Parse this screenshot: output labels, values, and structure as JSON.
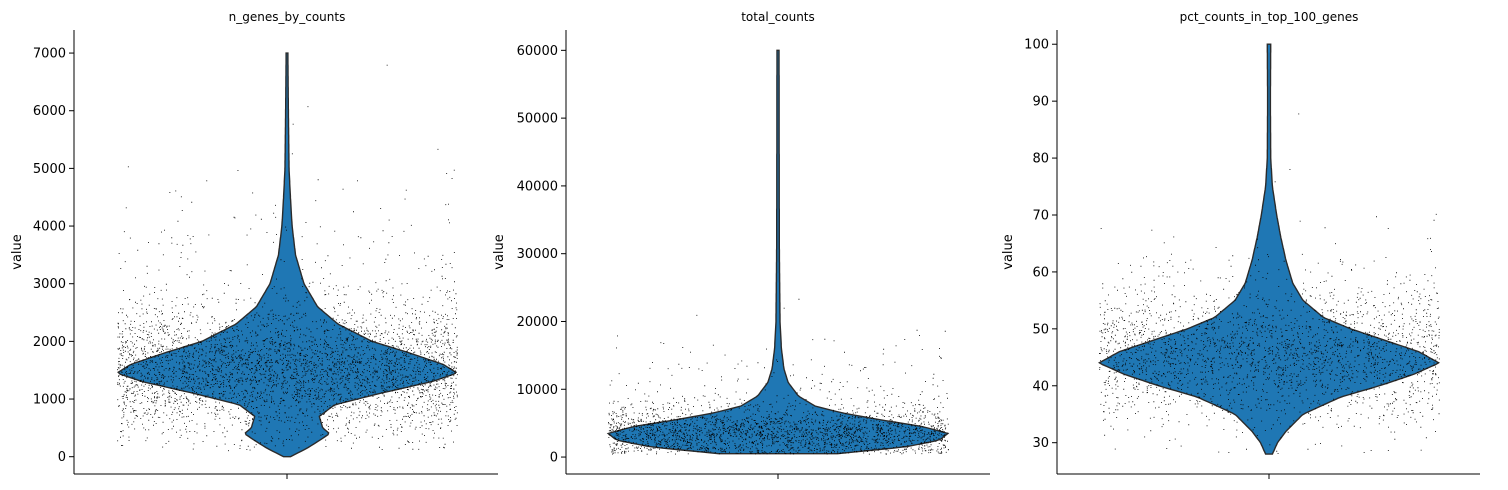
{
  "chart_data": [
    {
      "type": "violin",
      "title": "n_genes_by_counts",
      "ylabel": "value",
      "ylim": [
        -300,
        7400
      ],
      "yticks": [
        0,
        1000,
        2000,
        3000,
        4000,
        5000,
        6000,
        7000
      ],
      "yticklabels": [
        "0",
        "1000",
        "2000",
        "3000",
        "4000",
        "5000",
        "6000",
        "7000"
      ],
      "violin_color": "#1f77b4",
      "violin_range": [
        0,
        7000
      ],
      "violin_profile": [
        [
          0,
          0.02
        ],
        [
          150,
          0.12
        ],
        [
          300,
          0.2
        ],
        [
          400,
          0.25
        ],
        [
          500,
          0.21
        ],
        [
          700,
          0.19
        ],
        [
          900,
          0.28
        ],
        [
          1100,
          0.55
        ],
        [
          1300,
          0.85
        ],
        [
          1450,
          1.0
        ],
        [
          1600,
          0.92
        ],
        [
          1800,
          0.72
        ],
        [
          2000,
          0.5
        ],
        [
          2300,
          0.3
        ],
        [
          2600,
          0.18
        ],
        [
          3000,
          0.1
        ],
        [
          3500,
          0.05
        ],
        [
          4000,
          0.03
        ],
        [
          4500,
          0.02
        ],
        [
          5000,
          0.012
        ],
        [
          6000,
          0.008
        ],
        [
          7000,
          0.005
        ]
      ],
      "scatter_model": {
        "center": 1450,
        "spread": 550,
        "tail": 1400,
        "min": 100,
        "max": 7000,
        "count": 9000
      }
    },
    {
      "type": "violin",
      "title": "total_counts",
      "ylabel": "value",
      "ylim": [
        -2500,
        63000
      ],
      "yticks": [
        0,
        10000,
        20000,
        30000,
        40000,
        50000,
        60000
      ],
      "yticklabels": [
        "0",
        "10000",
        "20000",
        "30000",
        "40000",
        "50000",
        "60000"
      ],
      "violin_color": "#1f77b4",
      "violin_range": [
        500,
        60000
      ],
      "violin_profile": [
        [
          500,
          0.35
        ],
        [
          1500,
          0.75
        ],
        [
          2500,
          0.95
        ],
        [
          3500,
          1.0
        ],
        [
          4500,
          0.85
        ],
        [
          5500,
          0.6
        ],
        [
          6500,
          0.38
        ],
        [
          7500,
          0.22
        ],
        [
          9000,
          0.12
        ],
        [
          11000,
          0.06
        ],
        [
          13000,
          0.035
        ],
        [
          16000,
          0.02
        ],
        [
          20000,
          0.012
        ],
        [
          30000,
          0.008
        ],
        [
          40000,
          0.007
        ],
        [
          60000,
          0.006
        ]
      ],
      "scatter_model": {
        "center": 3500,
        "spread": 1900,
        "tail": 6000,
        "min": 500,
        "max": 60000,
        "count": 9000
      }
    },
    {
      "type": "violin",
      "title": "pct_counts_in_top_100_genes",
      "ylabel": "value",
      "ylim": [
        24.5,
        102.5
      ],
      "yticks": [
        30,
        40,
        50,
        60,
        70,
        80,
        90,
        100
      ],
      "yticklabels": [
        "30",
        "40",
        "50",
        "60",
        "70",
        "80",
        "90",
        "100"
      ],
      "violin_color": "#1f77b4",
      "violin_range": [
        28,
        100
      ],
      "violin_profile": [
        [
          28,
          0.02
        ],
        [
          30,
          0.05
        ],
        [
          32,
          0.1
        ],
        [
          35,
          0.2
        ],
        [
          38,
          0.42
        ],
        [
          40,
          0.65
        ],
        [
          42,
          0.85
        ],
        [
          44,
          1.0
        ],
        [
          46,
          0.88
        ],
        [
          48,
          0.68
        ],
        [
          50,
          0.48
        ],
        [
          52,
          0.32
        ],
        [
          55,
          0.2
        ],
        [
          58,
          0.14
        ],
        [
          62,
          0.1
        ],
        [
          66,
          0.07
        ],
        [
          70,
          0.045
        ],
        [
          75,
          0.02
        ],
        [
          80,
          0.01
        ],
        [
          90,
          0.008
        ],
        [
          100,
          0.01
        ]
      ],
      "scatter_model": {
        "center": 45,
        "spread": 6,
        "tail": 10,
        "min": 28,
        "max": 100,
        "count": 9000
      }
    }
  ]
}
